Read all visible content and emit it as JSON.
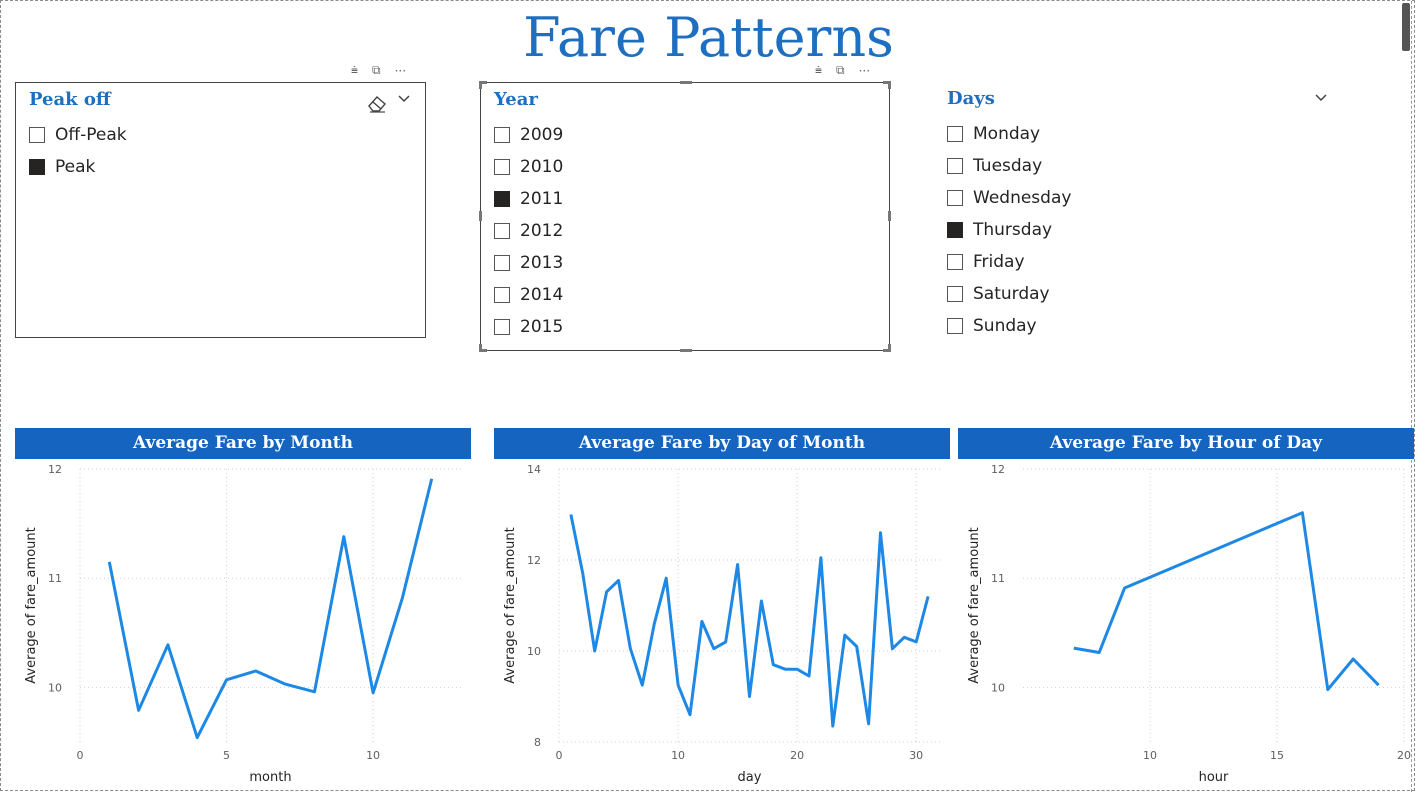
{
  "page": {
    "title": "Fare Patterns"
  },
  "slicers": {
    "peak": {
      "header": "Peak off",
      "items": [
        {
          "label": "Off-Peak",
          "checked": false
        },
        {
          "label": "Peak",
          "checked": true
        }
      ]
    },
    "year": {
      "header": "Year",
      "items": [
        {
          "label": "2009",
          "checked": false
        },
        {
          "label": "2010",
          "checked": false
        },
        {
          "label": "2011",
          "checked": true
        },
        {
          "label": "2012",
          "checked": false
        },
        {
          "label": "2013",
          "checked": false
        },
        {
          "label": "2014",
          "checked": false
        },
        {
          "label": "2015",
          "checked": false
        }
      ]
    },
    "days": {
      "header": "Days",
      "items": [
        {
          "label": "Monday",
          "checked": false
        },
        {
          "label": "Tuesday",
          "checked": false
        },
        {
          "label": "Wednesday",
          "checked": false
        },
        {
          "label": "Thursday",
          "checked": true
        },
        {
          "label": "Friday",
          "checked": false
        },
        {
          "label": "Saturday",
          "checked": false
        },
        {
          "label": "Sunday",
          "checked": false
        }
      ]
    }
  },
  "visual_tools": {
    "filter": "⩧",
    "focus": "⧉",
    "more": "···"
  },
  "colors": {
    "accent": "#1f6fc0",
    "header_bg": "#1565c0",
    "line": "#1e88e5"
  },
  "chart_data": [
    {
      "type": "line",
      "title": "Average Fare by Month",
      "xlabel": "month",
      "ylabel": "Average of fare_amount",
      "xlim": [
        0,
        13
      ],
      "ylim": [
        9.5,
        12
      ],
      "xticks": [
        0,
        5,
        10
      ],
      "yticks": [
        10,
        11,
        12
      ],
      "x": [
        1,
        2,
        3,
        4,
        5,
        6,
        7,
        8,
        9,
        10,
        11,
        12
      ],
      "values": [
        11.15,
        9.79,
        10.39,
        9.54,
        10.07,
        10.15,
        10.03,
        9.96,
        11.38,
        9.95,
        10.82,
        11.91
      ]
    },
    {
      "type": "line",
      "title": "Average Fare by Day of Month",
      "xlabel": "day",
      "ylabel": "Average of fare_amount",
      "xlim": [
        0,
        32
      ],
      "ylim": [
        8,
        14
      ],
      "xticks": [
        0,
        10,
        20,
        30
      ],
      "yticks": [
        8,
        10,
        12,
        14
      ],
      "x": [
        1,
        2,
        3,
        4,
        5,
        6,
        7,
        8,
        9,
        10,
        11,
        12,
        13,
        14,
        15,
        16,
        17,
        18,
        19,
        20,
        21,
        22,
        23,
        24,
        25,
        26,
        27,
        28,
        29,
        30,
        31
      ],
      "values": [
        13.0,
        11.7,
        10.0,
        11.3,
        11.55,
        10.05,
        9.25,
        10.6,
        11.6,
        9.25,
        8.6,
        10.65,
        10.05,
        10.2,
        11.9,
        9.0,
        11.1,
        9.7,
        9.6,
        9.6,
        9.45,
        12.05,
        8.35,
        10.35,
        10.1,
        8.4,
        12.6,
        10.05,
        10.3,
        10.2,
        11.2
      ]
    },
    {
      "type": "line",
      "title": "Average Fare by Hour of Day",
      "xlabel": "hour",
      "ylabel": "Average of fare_amount",
      "xlim": [
        5,
        20
      ],
      "ylim": [
        9.5,
        12
      ],
      "xticks": [
        10,
        15,
        20
      ],
      "yticks": [
        10,
        11,
        12
      ],
      "x": [
        7,
        8,
        9,
        16,
        17,
        18,
        19
      ],
      "values": [
        10.36,
        10.32,
        10.91,
        11.6,
        9.98,
        10.26,
        10.02
      ]
    }
  ]
}
